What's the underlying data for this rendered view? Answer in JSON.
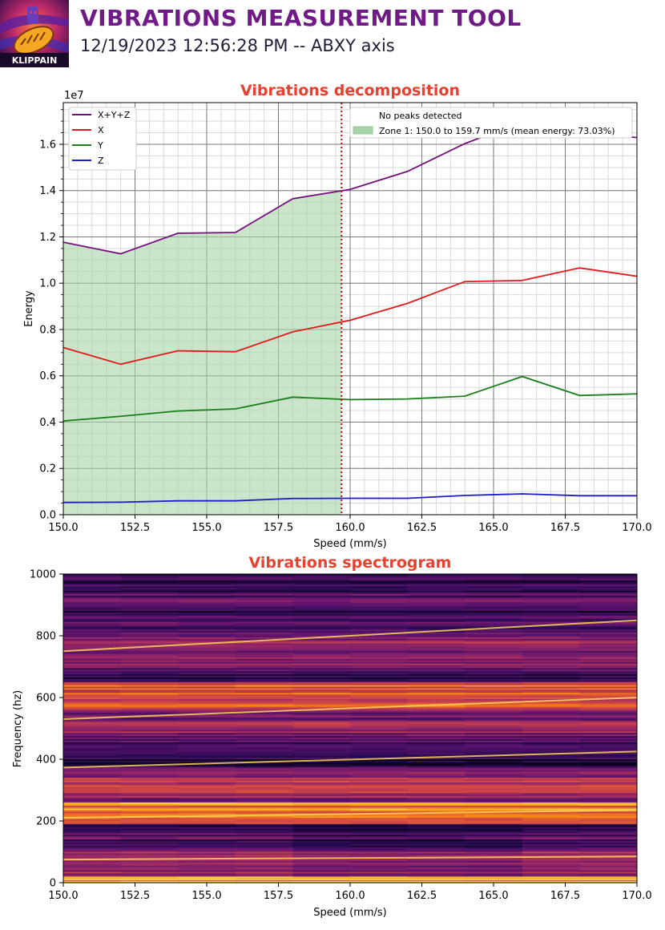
{
  "header": {
    "title": "VIBRATIONS MEASUREMENT TOOL",
    "subtitle": "12/19/2023 12:56:28 PM -- ABXY axis",
    "logo_text": "KLIPPAIN"
  },
  "colors": {
    "title_purple": "#6f1a86",
    "chart_title_red": "#e8402f",
    "series_xyz": "#760f7e",
    "series_x": "#e01b1b",
    "series_y": "#1a7f1a",
    "series_z": "#1c1cc8",
    "zone_fill": "#a9d4a9",
    "marker_red": "#e00000"
  },
  "chart_data": [
    {
      "type": "line",
      "title": "Vibrations decomposition",
      "xlabel": "Speed (mm/s)",
      "ylabel": "Energy",
      "y_scale_label": "1e7",
      "xlim": [
        150,
        170
      ],
      "ylim": [
        0,
        1.78
      ],
      "x_ticks": [
        "150.0",
        "152.5",
        "155.0",
        "157.5",
        "160.0",
        "162.5",
        "165.0",
        "167.5",
        "170.0"
      ],
      "y_ticks": [
        "0.0",
        "0.2",
        "0.4",
        "0.6",
        "0.8",
        "1.0",
        "1.2",
        "1.4",
        "1.6"
      ],
      "grid": true,
      "x": [
        150,
        152,
        154,
        156,
        158,
        160,
        162,
        164,
        166,
        168,
        170
      ],
      "series": [
        {
          "name": "X+Y+Z",
          "color": "#760f7e",
          "values": [
            1.177,
            1.127,
            1.216,
            1.219,
            1.365,
            1.405,
            1.483,
            1.603,
            1.697,
            1.654,
            1.629
          ]
        },
        {
          "name": "X",
          "color": "#e01b1b",
          "values": [
            0.722,
            0.65,
            0.708,
            0.704,
            0.79,
            0.84,
            0.913,
            1.007,
            1.012,
            1.066,
            1.03
          ]
        },
        {
          "name": "Y",
          "color": "#1a7f1a",
          "values": [
            0.405,
            0.425,
            0.448,
            0.457,
            0.508,
            0.497,
            0.5,
            0.512,
            0.597,
            0.515,
            0.522
          ]
        },
        {
          "name": "Z",
          "color": "#1c1cc8",
          "values": [
            0.053,
            0.054,
            0.06,
            0.06,
            0.07,
            0.071,
            0.071,
            0.083,
            0.09,
            0.082,
            0.082
          ]
        }
      ],
      "zone": {
        "start": 150.0,
        "end": 159.7,
        "label": "Zone 1: 150.0 to 159.7 mm/s (mean energy: 73.03%)"
      },
      "marker_line_x": 159.7,
      "annotation": "No peaks detected",
      "legend_left_position": "top-left",
      "legend_right_position": "top-right"
    },
    {
      "type": "heatmap",
      "title": "Vibrations spectrogram",
      "xlabel": "Speed (mm/s)",
      "ylabel": "Frequency (hz)",
      "xlim": [
        150,
        170
      ],
      "ylim": [
        0,
        1000
      ],
      "x_ticks": [
        "150.0",
        "152.5",
        "155.0",
        "157.5",
        "160.0",
        "162.5",
        "165.0",
        "167.5",
        "170.0"
      ],
      "y_ticks": [
        "0",
        "200",
        "400",
        "600",
        "800",
        "1000"
      ],
      "colormap": "inferno",
      "harmonic_lines": [
        {
          "start_hz": 750,
          "end_hz": 850
        },
        {
          "start_hz": 530,
          "end_hz": 600
        },
        {
          "start_hz": 373,
          "end_hz": 425
        },
        {
          "start_hz": 210,
          "end_hz": 235
        },
        {
          "start_hz": 75,
          "end_hz": 85
        },
        {
          "start_hz": 10,
          "end_hz": 10
        }
      ],
      "bright_bands_hz": [
        {
          "from": 190,
          "to": 260,
          "intensity": 0.78
        },
        {
          "from": 560,
          "to": 650,
          "intensity": 0.62
        },
        {
          "from": 300,
          "to": 340,
          "intensity": 0.5
        },
        {
          "from": 0,
          "to": 20,
          "intensity": 0.8
        }
      ]
    }
  ]
}
